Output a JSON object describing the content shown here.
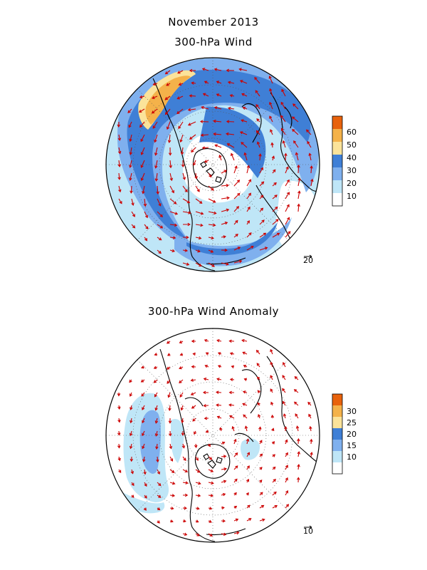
{
  "header": {
    "month_title": "November 2013",
    "panel1_title": "300-hPa Wind",
    "panel2_title": "300-hPa Wind Anomaly"
  },
  "panels": [
    {
      "id": "wind",
      "colorbar": {
        "labels": [
          "60",
          "50",
          "40",
          "30",
          "20",
          "10"
        ],
        "colors": [
          "#e8620c",
          "#f4b24a",
          "#fbe39a",
          "#3f7fd6",
          "#7fb0ee",
          "#bfe6f7",
          "#ffffff"
        ]
      },
      "reference_vector_label": "20"
    },
    {
      "id": "anomaly",
      "colorbar": {
        "labels": [
          "30",
          "25",
          "20",
          "15",
          "10"
        ],
        "colors": [
          "#e8620c",
          "#f4b24a",
          "#fbe39a",
          "#3f7fd6",
          "#7fb0ee",
          "#bfe6f7",
          "#ffffff"
        ]
      },
      "reference_vector_label": "10"
    }
  ],
  "colors": {
    "arrow": "#cc0000",
    "coast": "#000000",
    "grid": "#555555"
  }
}
